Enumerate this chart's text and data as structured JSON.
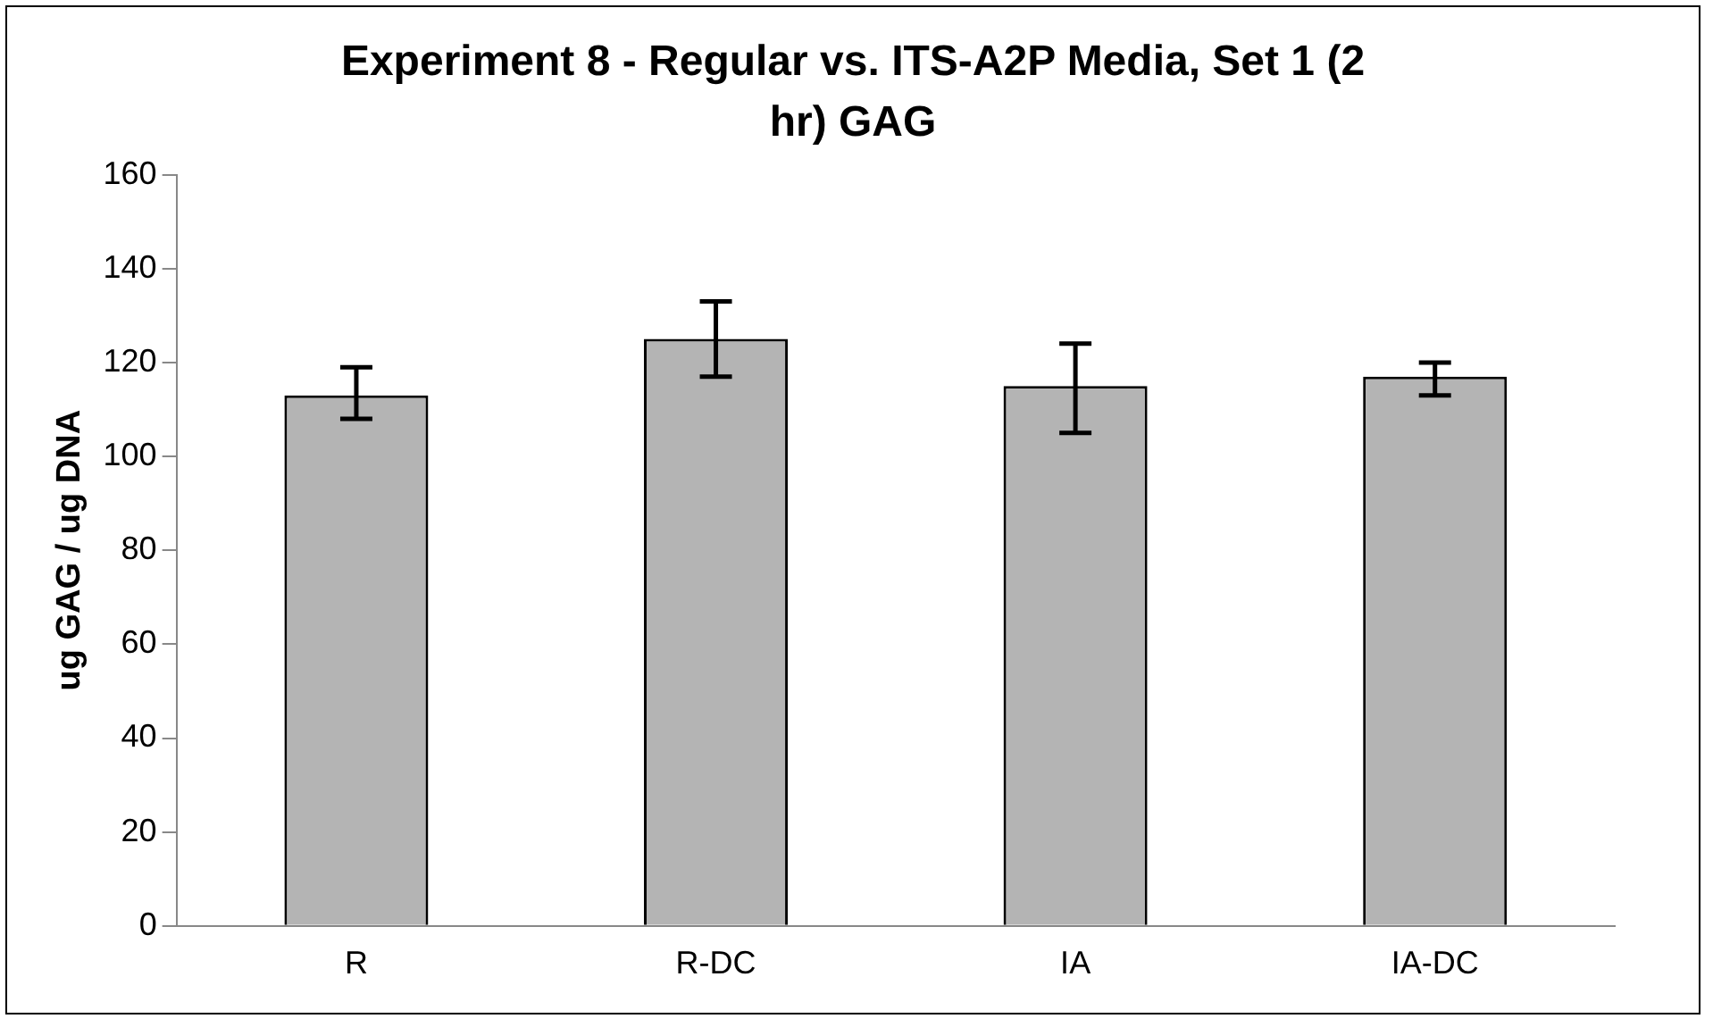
{
  "chart_data": {
    "type": "bar",
    "title": "Experiment 8 - Regular vs. ITS-A2P Media,  Set 1 (2 hr) GAG",
    "ylabel": "ug GAG / ug DNA",
    "categories": [
      "R",
      "R-DC",
      "IA",
      "IA-DC"
    ],
    "values": [
      113,
      125,
      115,
      117
    ],
    "errors": [
      [
        108,
        119
      ],
      [
        117,
        133
      ],
      [
        105,
        124
      ],
      [
        113,
        120
      ]
    ],
    "color": "#b4b4b4",
    "ylim": [
      0,
      160
    ],
    "yticks": [
      0,
      20,
      40,
      60,
      80,
      100,
      120,
      140,
      160
    ],
    "grid": false,
    "legend": false
  }
}
